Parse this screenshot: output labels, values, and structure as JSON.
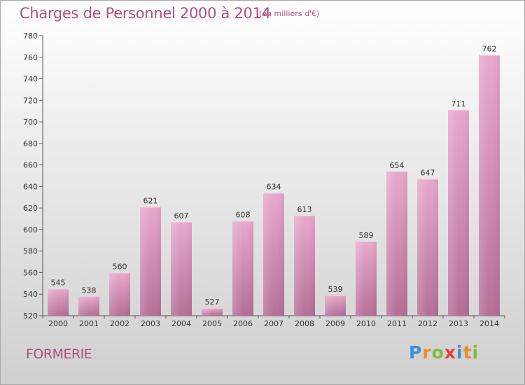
{
  "header": {
    "title": "Charges de Personnel 2000 à 2014",
    "unit": "(en milliers d'€)"
  },
  "footer": {
    "commune": "FORMERIE",
    "logo_letters": [
      "P",
      "r",
      "o",
      "x",
      "i",
      "t",
      "i"
    ],
    "logo_colors": [
      "#3c8fd4",
      "#f08a24",
      "#7bbf3c",
      "#e83b3b",
      "#3c8fd4",
      "#f08a24",
      "#7bbf3c"
    ]
  },
  "colors": {
    "bar": "#d88bb6",
    "bar_light": "#e8a9cc",
    "bar_dark": "#b56f97",
    "title": "#b14d82"
  },
  "chart_data": {
    "type": "bar",
    "title": "Charges de Personnel 2000 à 2014",
    "xlabel": "",
    "ylabel": "",
    "categories": [
      "2000",
      "2001",
      "2002",
      "2003",
      "2004",
      "2005",
      "2006",
      "2007",
      "2008",
      "2009",
      "2010",
      "2011",
      "2012",
      "2013",
      "2014"
    ],
    "values": [
      545,
      538,
      560,
      621,
      607,
      527,
      608,
      634,
      613,
      539,
      589,
      654,
      647,
      711,
      762
    ],
    "ylim": [
      520,
      780
    ],
    "yticks": [
      520,
      540,
      560,
      580,
      600,
      620,
      640,
      660,
      680,
      700,
      720,
      740,
      760,
      780
    ],
    "grid": false
  }
}
